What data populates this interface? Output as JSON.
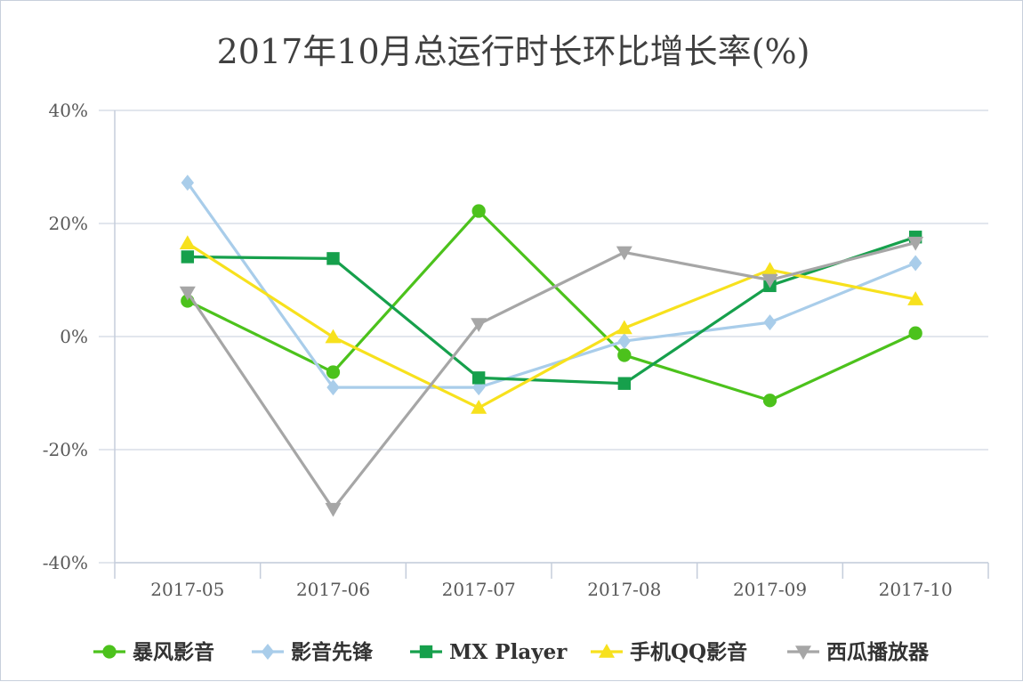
{
  "chart_data": {
    "type": "line",
    "title": "2017年10月总运行时长环比增长率(%)",
    "xlabel": "",
    "ylabel": "",
    "categories": [
      "2017-05",
      "2017-06",
      "2017-07",
      "2017-08",
      "2017-09",
      "2017-10"
    ],
    "ylim": [
      -40,
      40
    ],
    "yticks": [
      40,
      20,
      0,
      -20,
      -40
    ],
    "ytick_labels": [
      "40%",
      "20%",
      "0%",
      "-20%",
      "-40%"
    ],
    "grid": true,
    "legend_position": "bottom",
    "series": [
      {
        "name": "暴风影音",
        "color": "#4cc21c",
        "marker": "circle",
        "values": [
          6.3,
          -6.3,
          22.2,
          -3.3,
          -11.3,
          0.6
        ]
      },
      {
        "name": "影音先锋",
        "color": "#a9cdea",
        "marker": "diamond",
        "values": [
          27.2,
          -9.0,
          -9.0,
          -0.8,
          2.5,
          13.0
        ]
      },
      {
        "name": "MX Player",
        "color": "#16a04c",
        "marker": "square",
        "values": [
          14.1,
          13.8,
          -7.3,
          -8.3,
          9.0,
          17.6
        ]
      },
      {
        "name": "手机QQ影音",
        "color": "#f7e11d",
        "marker": "triangle-up",
        "values": [
          16.5,
          -0.1,
          -12.6,
          1.5,
          11.8,
          6.6
        ]
      },
      {
        "name": "西瓜播放器",
        "color": "#a6a6a6",
        "marker": "triangle-down",
        "values": [
          7.8,
          -30.5,
          2.2,
          14.9,
          10.0,
          16.6
        ]
      }
    ]
  }
}
